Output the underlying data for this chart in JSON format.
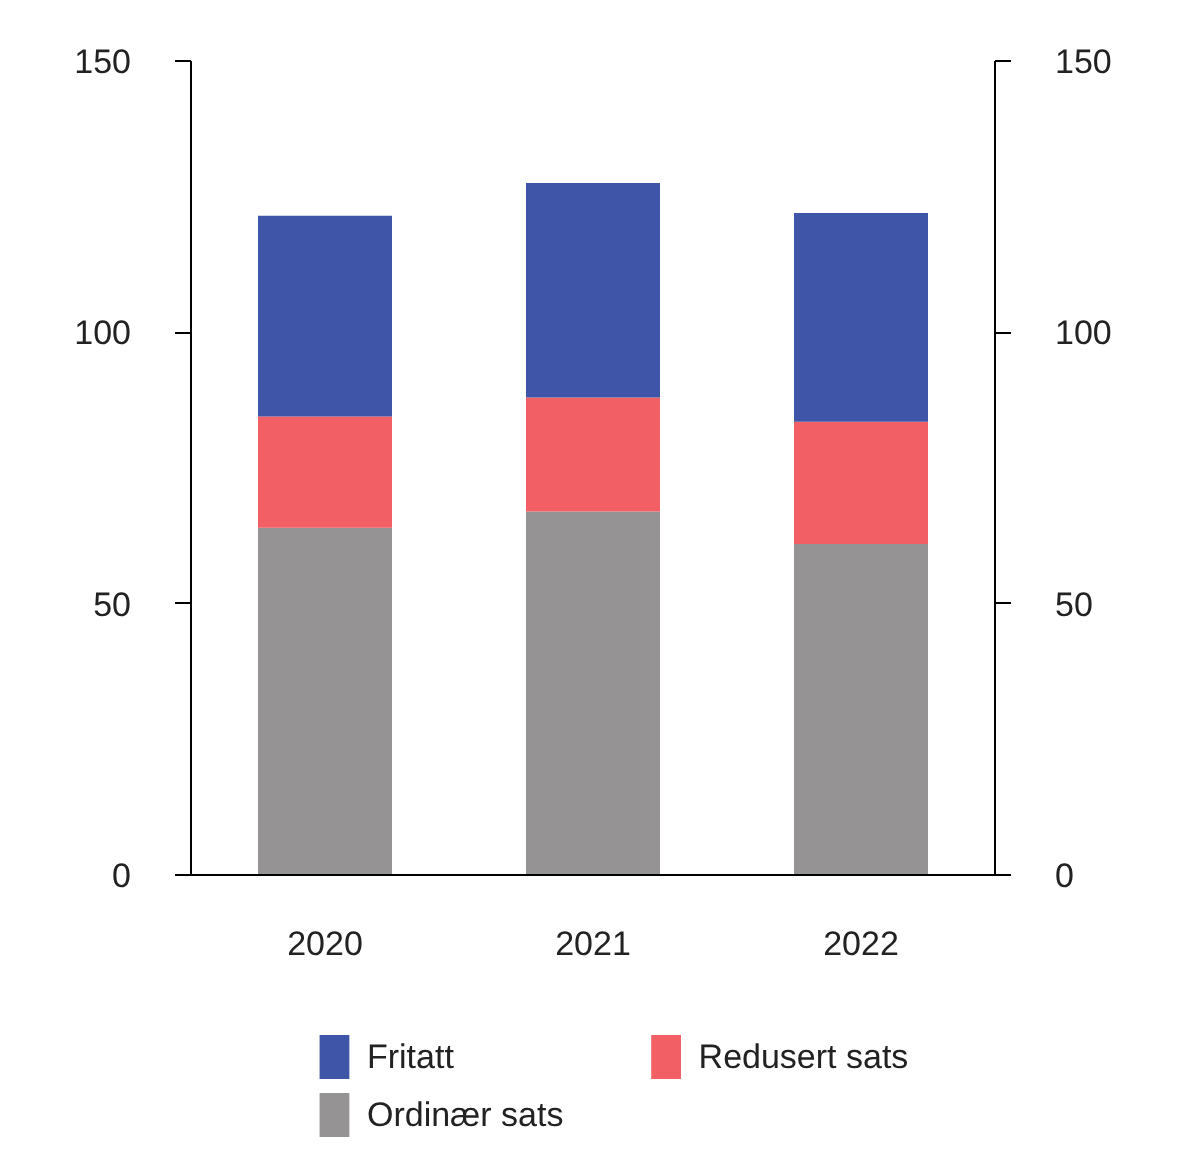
{
  "chart_data": {
    "type": "bar",
    "stacked": true,
    "categories": [
      "2020",
      "2021",
      "2022"
    ],
    "series": [
      {
        "name": "Ordinær sats",
        "color": "#959394",
        "values": [
          64,
          67,
          61
        ]
      },
      {
        "name": "Redusert sats",
        "color": "#f25f64",
        "values": [
          20.5,
          21,
          22.5
        ]
      },
      {
        "name": "Fritatt",
        "color": "#3f56a8",
        "values": [
          37,
          39.5,
          38.5
        ]
      }
    ],
    "ylim": [
      0,
      150
    ],
    "yticks": [
      0,
      50,
      100,
      150
    ],
    "y2lim": [
      0,
      150
    ],
    "y2ticks": [
      0,
      50,
      100,
      150
    ],
    "legend": "bottom",
    "grid": false
  }
}
